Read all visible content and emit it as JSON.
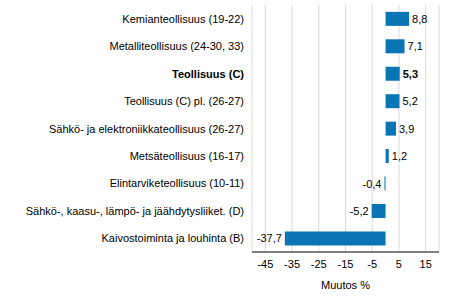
{
  "chart_data": {
    "type": "bar",
    "orientation": "horizontal",
    "x_label": "Muutos %",
    "categories": [
      "Kemianteollisuus (19-22)",
      "Metalliteollisuus (24-30, 33)",
      "Teollisuus (C)",
      "Teollisuus (C) pl. (26-27)",
      "Sähkö- ja elektroniikkateollisuus (26-27)",
      "Metsäteollisuus (16-17)",
      "Elintarviketeollisuus (10-11)",
      "Sähkö-, kaasu-, lämpö- ja jäähdytysliiket. (D)",
      "Kaivostoiminta  ja louhinta (B)"
    ],
    "values": [
      8.8,
      7.1,
      5.3,
      5.2,
      3.9,
      1.2,
      -0.4,
      -5.2,
      -37.7
    ],
    "value_labels": [
      "8,8",
      "7,1",
      "5,3",
      "5,2",
      "3,9",
      "1,2",
      "-0,4",
      "-5,2",
      "-37,7"
    ],
    "data_labels": true,
    "color": "#0a75b4",
    "xlim": [
      -50,
      20
    ],
    "xticks": [
      -45,
      -35,
      -25,
      -15,
      -5,
      5,
      15
    ],
    "grid": true
  }
}
